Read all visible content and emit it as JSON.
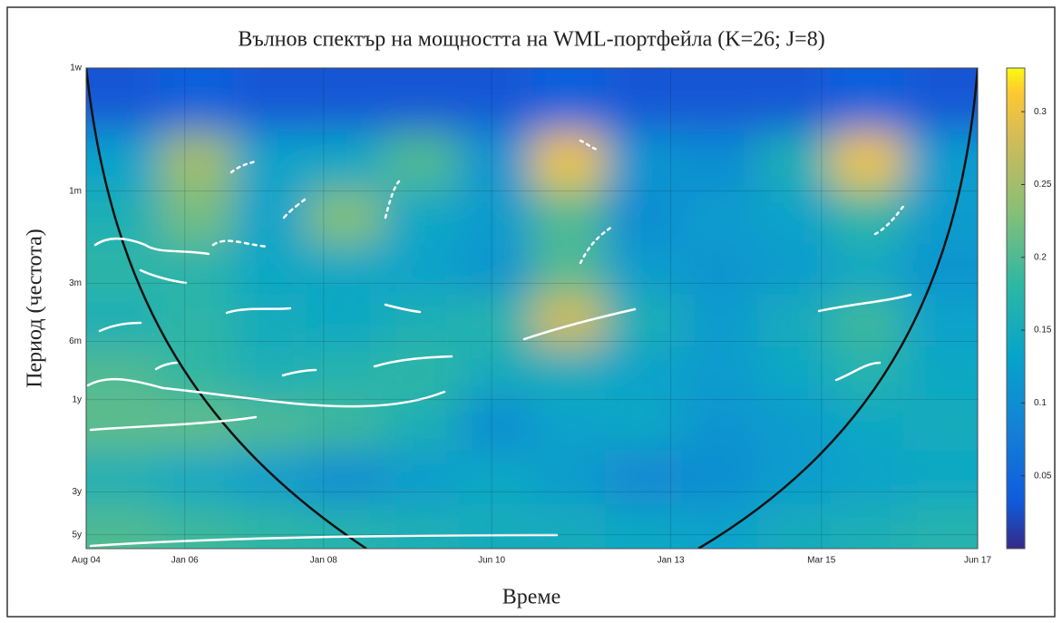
{
  "chart_data": {
    "type": "heatmap",
    "title": "Вълнов спектър на мощността на WML-портфейла (K=26; J=8)",
    "xlabel": "Време",
    "ylabel": "Период (честота)",
    "xlim": [
      2004.58,
      2017.42
    ],
    "xticks": [
      {
        "value": 2004.58,
        "label": "Aug 04"
      },
      {
        "value": 2006.0,
        "label": "Jan 06"
      },
      {
        "value": 2008.0,
        "label": "Jan 08"
      },
      {
        "value": 2010.42,
        "label": "Jun 10"
      },
      {
        "value": 2013.0,
        "label": "Jan 13"
      },
      {
        "value": 2015.17,
        "label": "Mar 15"
      },
      {
        "value": 2017.42,
        "label": "Jun 17"
      }
    ],
    "ylim": [
      1,
      307
    ],
    "ylog": true,
    "yreversed": true,
    "yticks": [
      {
        "value": 1,
        "label": "1w"
      },
      {
        "value": 4.33,
        "label": "1m"
      },
      {
        "value": 13,
        "label": "3m"
      },
      {
        "value": 26,
        "label": "6m"
      },
      {
        "value": 52,
        "label": "1y"
      },
      {
        "value": 156,
        "label": "3y"
      },
      {
        "value": 260,
        "label": "5y"
      }
    ],
    "x": [
      2005.1,
      2006.2,
      2007.2,
      2008.3,
      2009.4,
      2010.5,
      2011.5,
      2012.6,
      2013.7,
      2014.8,
      2015.8,
      2016.9
    ],
    "y": [
      1.5,
      3,
      6,
      11,
      20,
      38,
      70,
      130,
      250
    ],
    "z": [
      [
        0.03,
        0.04,
        0.03,
        0.03,
        0.03,
        0.03,
        0.04,
        0.03,
        0.03,
        0.03,
        0.04,
        0.03
      ],
      [
        0.13,
        0.25,
        0.13,
        0.14,
        0.2,
        0.11,
        0.3,
        0.11,
        0.1,
        0.16,
        0.3,
        0.12
      ],
      [
        0.16,
        0.22,
        0.13,
        0.23,
        0.14,
        0.12,
        0.2,
        0.1,
        0.12,
        0.13,
        0.18,
        0.12
      ],
      [
        0.18,
        0.17,
        0.14,
        0.14,
        0.13,
        0.11,
        0.2,
        0.12,
        0.11,
        0.12,
        0.14,
        0.11
      ],
      [
        0.16,
        0.18,
        0.15,
        0.14,
        0.16,
        0.17,
        0.28,
        0.16,
        0.12,
        0.15,
        0.19,
        0.13
      ],
      [
        0.2,
        0.18,
        0.16,
        0.17,
        0.18,
        0.15,
        0.15,
        0.13,
        0.12,
        0.14,
        0.17,
        0.14
      ],
      [
        0.21,
        0.21,
        0.2,
        0.19,
        0.16,
        0.1,
        0.13,
        0.14,
        0.11,
        0.12,
        0.14,
        0.15
      ],
      [
        0.16,
        0.14,
        0.12,
        0.1,
        0.12,
        0.14,
        0.12,
        0.09,
        0.1,
        0.12,
        0.13,
        0.14
      ],
      [
        0.2,
        0.19,
        0.18,
        0.17,
        0.16,
        0.15,
        0.15,
        0.14,
        0.13,
        0.15,
        0.16,
        0.17
      ]
    ],
    "clim": [
      0,
      0.33
    ],
    "colorbar_ticks": [
      0.05,
      0.1,
      0.15,
      0.2,
      0.25,
      0.3
    ]
  }
}
